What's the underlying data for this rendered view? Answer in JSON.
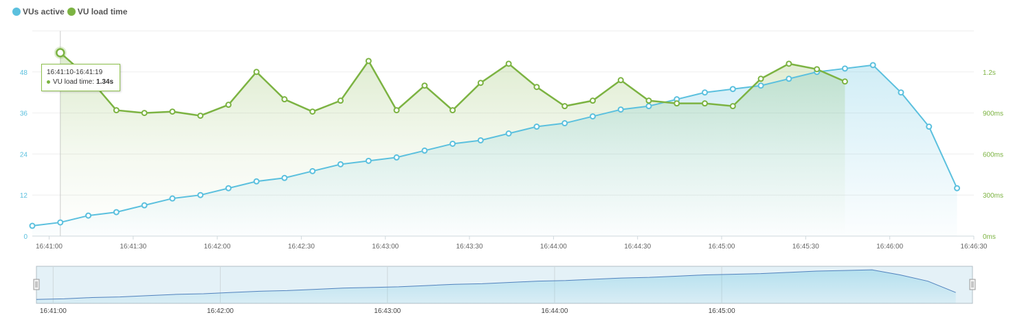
{
  "legend": [
    {
      "label": "VUs active",
      "color": "#5bc0de"
    },
    {
      "label": "VU load time",
      "color": "#7cb342"
    }
  ],
  "tooltip": {
    "range": "16:41:10-16:41:19",
    "label": "VU load time:",
    "value": "1.34s"
  },
  "chart_data": {
    "type": "line",
    "x_axis": {
      "tick_labels": [
        "16:41:00",
        "16:41:30",
        "16:42:00",
        "16:42:30",
        "16:43:00",
        "16:43:30",
        "16:44:00",
        "16:44:30",
        "16:45:00",
        "16:45:30",
        "16:46:00",
        "16:46:30"
      ],
      "range_seconds": [
        -6,
        330
      ]
    },
    "y_axis_left": {
      "tick_labels": [
        "0",
        "12",
        "24",
        "36",
        "48"
      ],
      "range": [
        0,
        60
      ]
    },
    "y_axis_right": {
      "tick_labels": [
        "0ms",
        "300ms",
        "600ms",
        "900ms",
        "1.2s"
      ],
      "range_ms": [
        0,
        1500
      ]
    },
    "series": [
      {
        "name": "VUs active",
        "axis": "left",
        "color": "#5bc0de",
        "x_seconds": [
          -6,
          4,
          14,
          24,
          34,
          44,
          54,
          64,
          74,
          84,
          94,
          104,
          114,
          124,
          134,
          144,
          154,
          164,
          174,
          184,
          194,
          204,
          214,
          224,
          234,
          244,
          254,
          264,
          274,
          284,
          294,
          304,
          314,
          324
        ],
        "y": [
          3,
          4,
          6,
          7,
          9,
          11,
          12,
          14,
          16,
          17,
          19,
          21,
          22,
          23,
          25,
          27,
          28,
          30,
          32,
          33,
          35,
          37,
          38,
          40,
          42,
          43,
          44,
          46,
          48,
          49,
          50,
          42,
          32,
          14
        ]
      },
      {
        "name": "VU load time",
        "axis": "right",
        "color": "#7cb342",
        "x_seconds": [
          4,
          14,
          24,
          34,
          44,
          54,
          64,
          74,
          84,
          94,
          104,
          114,
          124,
          134,
          144,
          154,
          164,
          174,
          184,
          194,
          204,
          214,
          224,
          234,
          244,
          254,
          264,
          274,
          284,
          294
        ],
        "y_ms": [
          1340,
          1160,
          920,
          900,
          910,
          880,
          960,
          1200,
          1000,
          910,
          990,
          1280,
          920,
          1100,
          920,
          1120,
          1260,
          1090,
          950,
          990,
          1140,
          990,
          970,
          970,
          950,
          1150,
          1260,
          1220,
          1130,
          null
        ]
      }
    ],
    "navigator": {
      "tick_labels": [
        "16:41:00",
        "16:42:00",
        "16:43:00",
        "16:44:00",
        "16:45:00"
      ]
    }
  }
}
